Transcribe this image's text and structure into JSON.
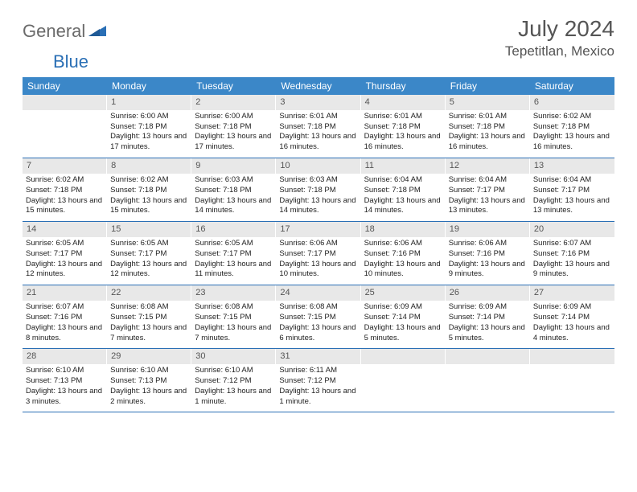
{
  "logo": {
    "part1": "General",
    "part2": "Blue"
  },
  "title": "July 2024",
  "location": "Tepetitlan, Mexico",
  "colors": {
    "header_bg": "#3b87c8",
    "header_text": "#ffffff",
    "daynum_bg": "#e8e8e8",
    "daynum_text": "#555555",
    "week_border": "#2a6fb5",
    "body_text": "#222222",
    "title_text": "#555555",
    "logo_gray": "#6a6a6a",
    "logo_blue": "#2a6fb5"
  },
  "day_labels": [
    "Sunday",
    "Monday",
    "Tuesday",
    "Wednesday",
    "Thursday",
    "Friday",
    "Saturday"
  ],
  "weeks": [
    [
      {
        "n": "",
        "sr": "",
        "ss": "",
        "dl": ""
      },
      {
        "n": "1",
        "sr": "Sunrise: 6:00 AM",
        "ss": "Sunset: 7:18 PM",
        "dl": "Daylight: 13 hours and 17 minutes."
      },
      {
        "n": "2",
        "sr": "Sunrise: 6:00 AM",
        "ss": "Sunset: 7:18 PM",
        "dl": "Daylight: 13 hours and 17 minutes."
      },
      {
        "n": "3",
        "sr": "Sunrise: 6:01 AM",
        "ss": "Sunset: 7:18 PM",
        "dl": "Daylight: 13 hours and 16 minutes."
      },
      {
        "n": "4",
        "sr": "Sunrise: 6:01 AM",
        "ss": "Sunset: 7:18 PM",
        "dl": "Daylight: 13 hours and 16 minutes."
      },
      {
        "n": "5",
        "sr": "Sunrise: 6:01 AM",
        "ss": "Sunset: 7:18 PM",
        "dl": "Daylight: 13 hours and 16 minutes."
      },
      {
        "n": "6",
        "sr": "Sunrise: 6:02 AM",
        "ss": "Sunset: 7:18 PM",
        "dl": "Daylight: 13 hours and 16 minutes."
      }
    ],
    [
      {
        "n": "7",
        "sr": "Sunrise: 6:02 AM",
        "ss": "Sunset: 7:18 PM",
        "dl": "Daylight: 13 hours and 15 minutes."
      },
      {
        "n": "8",
        "sr": "Sunrise: 6:02 AM",
        "ss": "Sunset: 7:18 PM",
        "dl": "Daylight: 13 hours and 15 minutes."
      },
      {
        "n": "9",
        "sr": "Sunrise: 6:03 AM",
        "ss": "Sunset: 7:18 PM",
        "dl": "Daylight: 13 hours and 14 minutes."
      },
      {
        "n": "10",
        "sr": "Sunrise: 6:03 AM",
        "ss": "Sunset: 7:18 PM",
        "dl": "Daylight: 13 hours and 14 minutes."
      },
      {
        "n": "11",
        "sr": "Sunrise: 6:04 AM",
        "ss": "Sunset: 7:18 PM",
        "dl": "Daylight: 13 hours and 14 minutes."
      },
      {
        "n": "12",
        "sr": "Sunrise: 6:04 AM",
        "ss": "Sunset: 7:17 PM",
        "dl": "Daylight: 13 hours and 13 minutes."
      },
      {
        "n": "13",
        "sr": "Sunrise: 6:04 AM",
        "ss": "Sunset: 7:17 PM",
        "dl": "Daylight: 13 hours and 13 minutes."
      }
    ],
    [
      {
        "n": "14",
        "sr": "Sunrise: 6:05 AM",
        "ss": "Sunset: 7:17 PM",
        "dl": "Daylight: 13 hours and 12 minutes."
      },
      {
        "n": "15",
        "sr": "Sunrise: 6:05 AM",
        "ss": "Sunset: 7:17 PM",
        "dl": "Daylight: 13 hours and 12 minutes."
      },
      {
        "n": "16",
        "sr": "Sunrise: 6:05 AM",
        "ss": "Sunset: 7:17 PM",
        "dl": "Daylight: 13 hours and 11 minutes."
      },
      {
        "n": "17",
        "sr": "Sunrise: 6:06 AM",
        "ss": "Sunset: 7:17 PM",
        "dl": "Daylight: 13 hours and 10 minutes."
      },
      {
        "n": "18",
        "sr": "Sunrise: 6:06 AM",
        "ss": "Sunset: 7:16 PM",
        "dl": "Daylight: 13 hours and 10 minutes."
      },
      {
        "n": "19",
        "sr": "Sunrise: 6:06 AM",
        "ss": "Sunset: 7:16 PM",
        "dl": "Daylight: 13 hours and 9 minutes."
      },
      {
        "n": "20",
        "sr": "Sunrise: 6:07 AM",
        "ss": "Sunset: 7:16 PM",
        "dl": "Daylight: 13 hours and 9 minutes."
      }
    ],
    [
      {
        "n": "21",
        "sr": "Sunrise: 6:07 AM",
        "ss": "Sunset: 7:16 PM",
        "dl": "Daylight: 13 hours and 8 minutes."
      },
      {
        "n": "22",
        "sr": "Sunrise: 6:08 AM",
        "ss": "Sunset: 7:15 PM",
        "dl": "Daylight: 13 hours and 7 minutes."
      },
      {
        "n": "23",
        "sr": "Sunrise: 6:08 AM",
        "ss": "Sunset: 7:15 PM",
        "dl": "Daylight: 13 hours and 7 minutes."
      },
      {
        "n": "24",
        "sr": "Sunrise: 6:08 AM",
        "ss": "Sunset: 7:15 PM",
        "dl": "Daylight: 13 hours and 6 minutes."
      },
      {
        "n": "25",
        "sr": "Sunrise: 6:09 AM",
        "ss": "Sunset: 7:14 PM",
        "dl": "Daylight: 13 hours and 5 minutes."
      },
      {
        "n": "26",
        "sr": "Sunrise: 6:09 AM",
        "ss": "Sunset: 7:14 PM",
        "dl": "Daylight: 13 hours and 5 minutes."
      },
      {
        "n": "27",
        "sr": "Sunrise: 6:09 AM",
        "ss": "Sunset: 7:14 PM",
        "dl": "Daylight: 13 hours and 4 minutes."
      }
    ],
    [
      {
        "n": "28",
        "sr": "Sunrise: 6:10 AM",
        "ss": "Sunset: 7:13 PM",
        "dl": "Daylight: 13 hours and 3 minutes."
      },
      {
        "n": "29",
        "sr": "Sunrise: 6:10 AM",
        "ss": "Sunset: 7:13 PM",
        "dl": "Daylight: 13 hours and 2 minutes."
      },
      {
        "n": "30",
        "sr": "Sunrise: 6:10 AM",
        "ss": "Sunset: 7:12 PM",
        "dl": "Daylight: 13 hours and 1 minute."
      },
      {
        "n": "31",
        "sr": "Sunrise: 6:11 AM",
        "ss": "Sunset: 7:12 PM",
        "dl": "Daylight: 13 hours and 1 minute."
      },
      {
        "n": "",
        "sr": "",
        "ss": "",
        "dl": ""
      },
      {
        "n": "",
        "sr": "",
        "ss": "",
        "dl": ""
      },
      {
        "n": "",
        "sr": "",
        "ss": "",
        "dl": ""
      }
    ]
  ]
}
